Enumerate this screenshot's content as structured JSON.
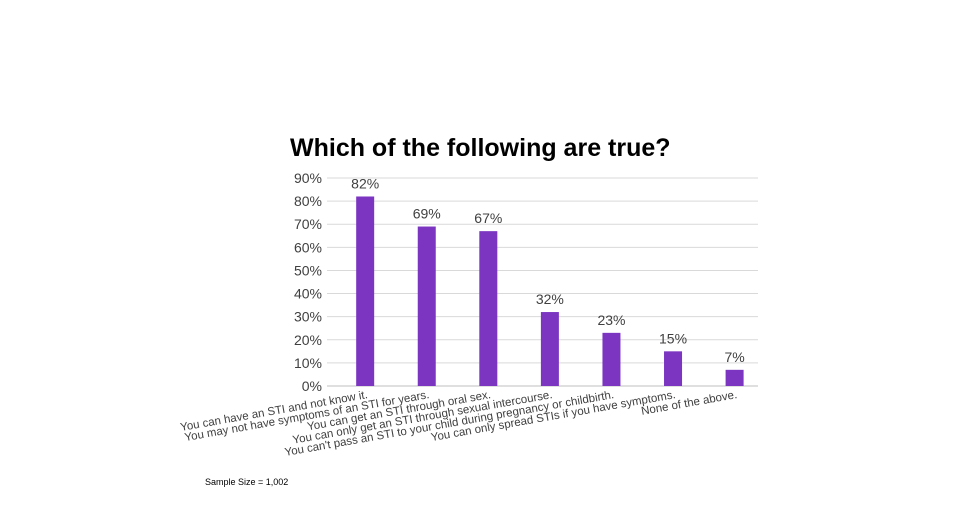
{
  "chart_data": {
    "type": "bar",
    "title": "Which of the following are true?",
    "categories": [
      "You can have an STI and not know it.",
      "You may not have symptoms of an STI for years.",
      "You can get an STI through oral sex.",
      "You can only get an STI through sexual intercourse.",
      "You can't pass an STI to your child during pregnancy or childbirth.",
      "You can only spread STIs if you have symptoms.",
      "None of the above."
    ],
    "values": [
      82,
      69,
      67,
      32,
      23,
      15,
      7
    ],
    "data_labels": [
      "82%",
      "69%",
      "67%",
      "32%",
      "23%",
      "15%",
      "7%"
    ],
    "ylim": [
      0,
      90
    ],
    "yticks": [
      "0%",
      "10%",
      "20%",
      "30%",
      "40%",
      "50%",
      "60%",
      "70%",
      "80%",
      "90%"
    ],
    "grid": true,
    "bar_color": "#7B35C1",
    "grid_color": "#D9D9D9"
  },
  "footnote": "Sample Size = 1,002"
}
